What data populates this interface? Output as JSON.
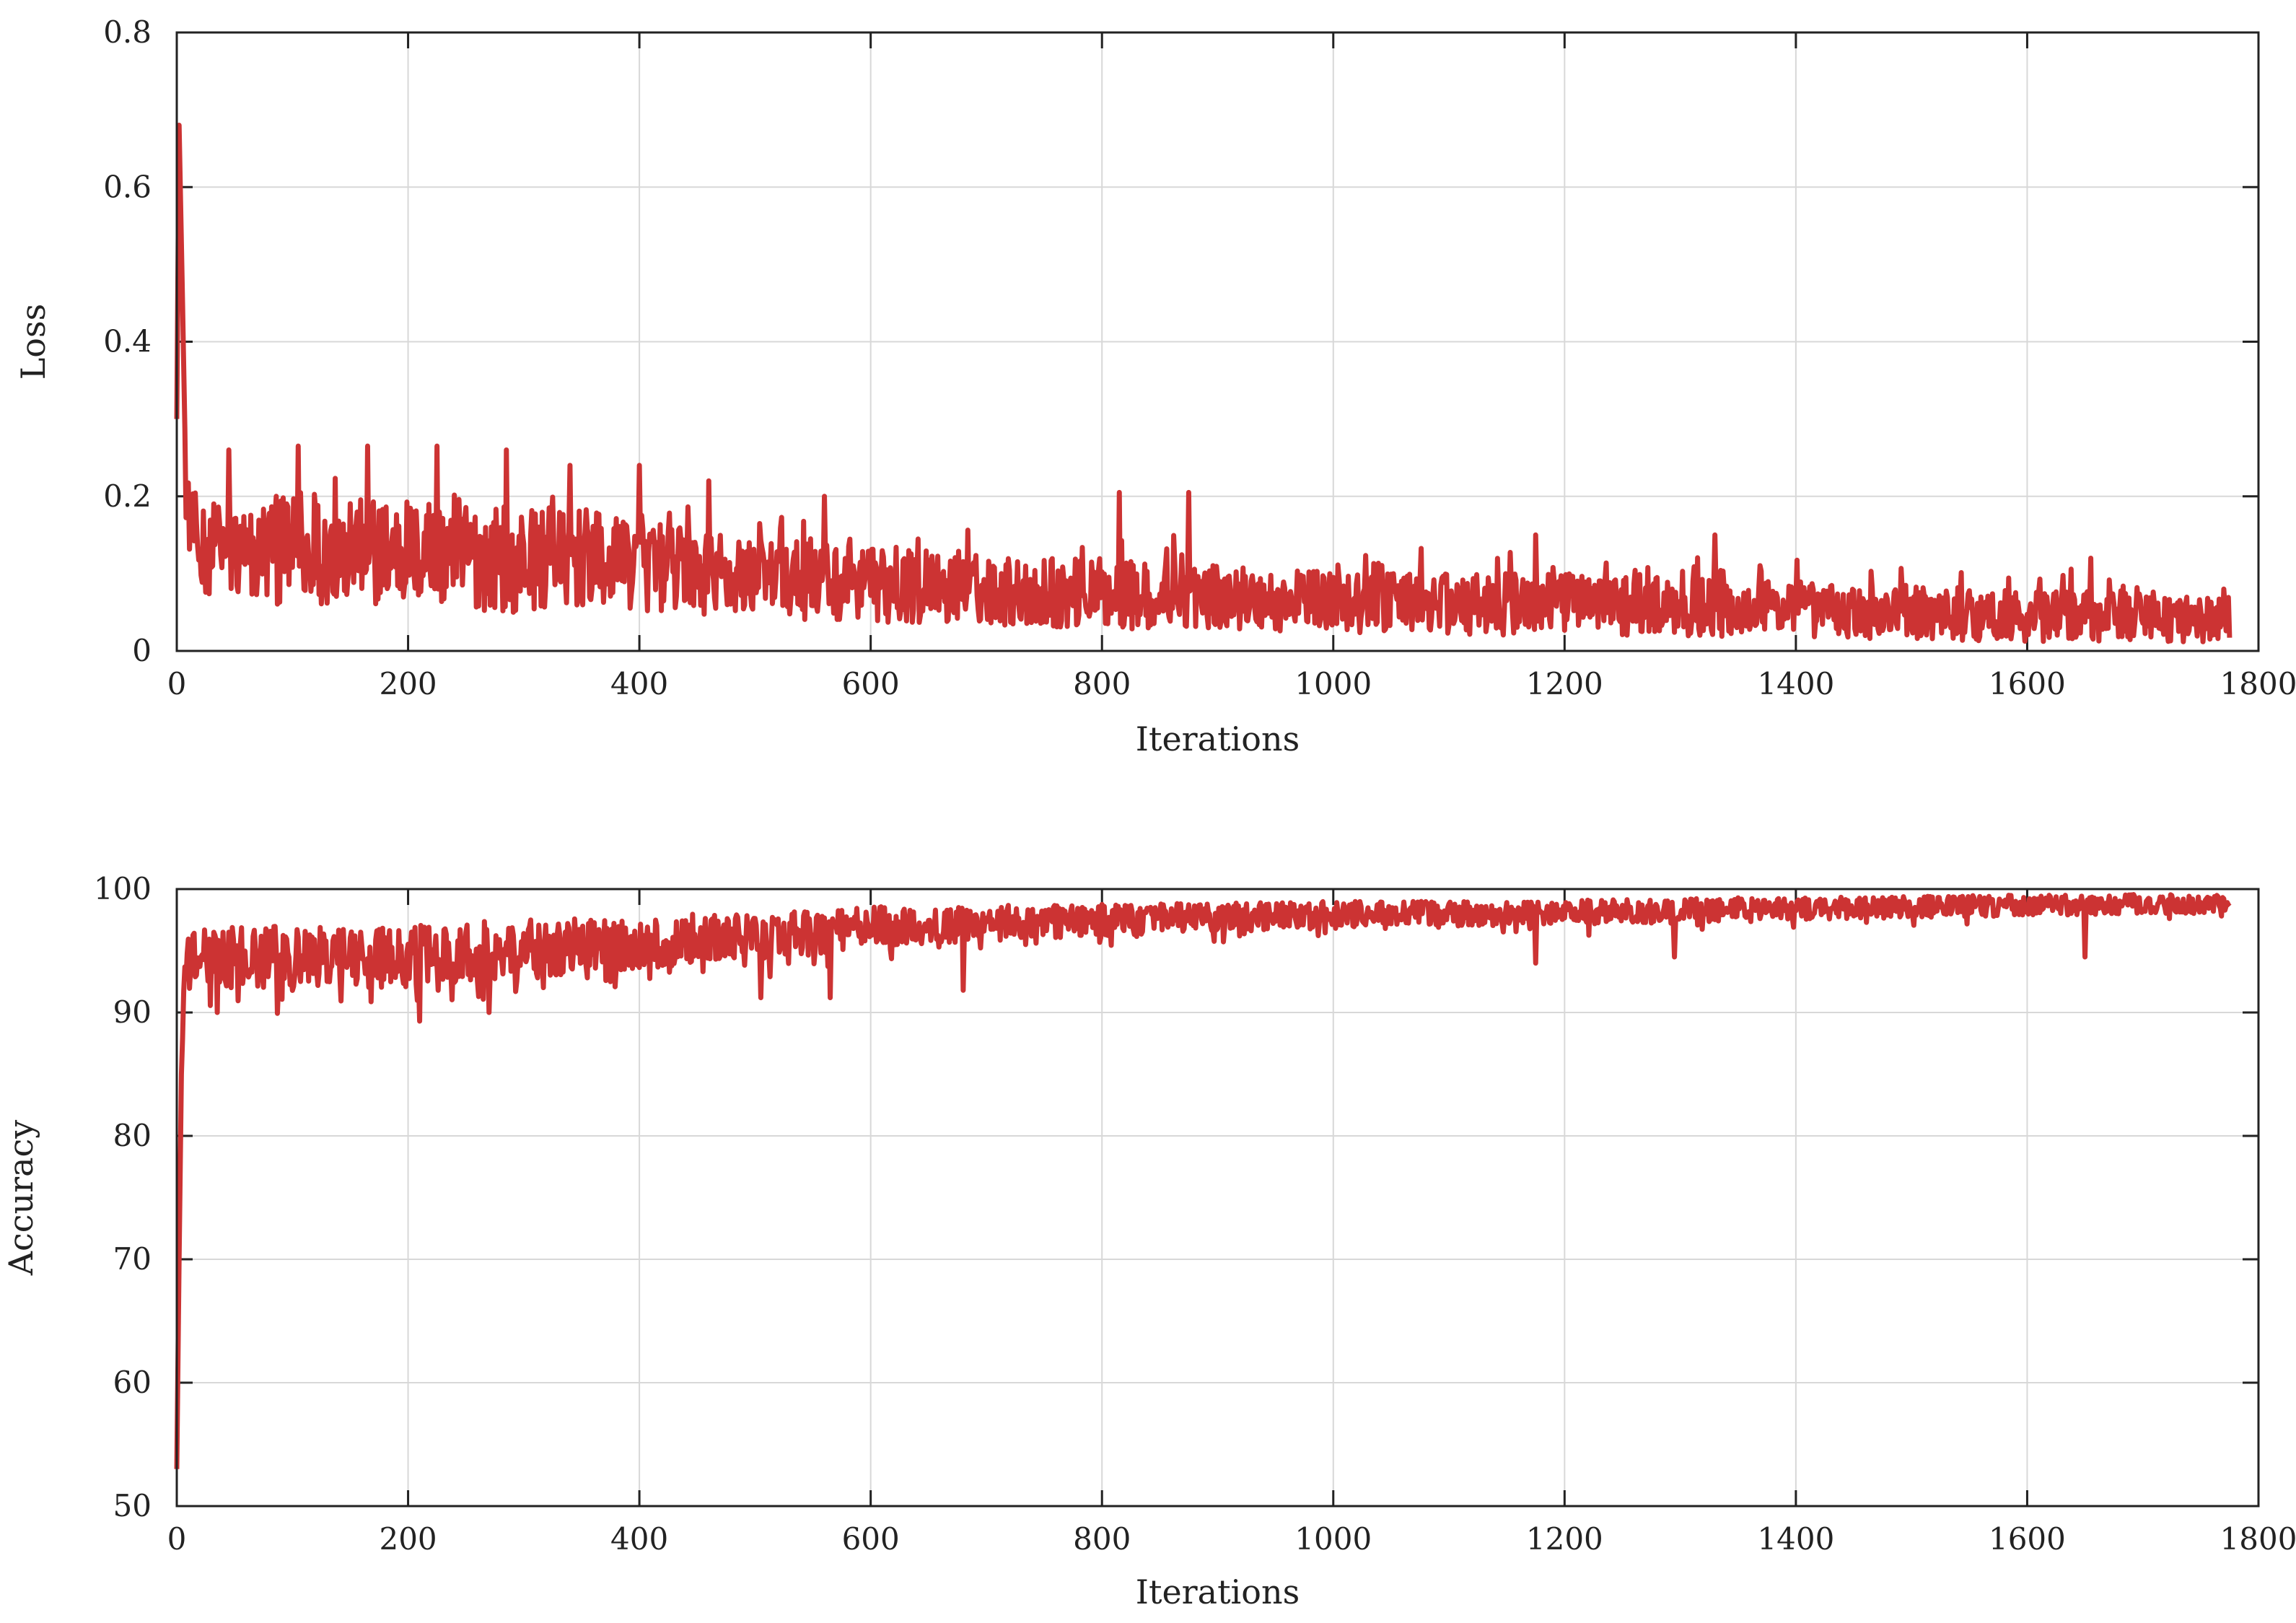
{
  "chart_data": [
    {
      "type": "line",
      "xlabel": "Iterations",
      "ylabel": "Loss",
      "xlim": [
        0,
        1800
      ],
      "ylim": [
        0,
        0.8
      ],
      "xticks": [
        0,
        200,
        400,
        600,
        800,
        1000,
        1200,
        1400,
        1600,
        1800
      ],
      "yticks": [
        0,
        0.2,
        0.4,
        0.6,
        0.8
      ],
      "ytick_labels": [
        "0",
        "0.2",
        "0.4",
        "0.6",
        "0.8"
      ],
      "grid": true,
      "color": "#cc3333",
      "series": [
        {
          "x": [
            0,
            2,
            5,
            8,
            12,
            20,
            35,
            50,
            75,
            100,
            125,
            150,
            175,
            200,
            225,
            250,
            275,
            300,
            325,
            350,
            375,
            400,
            425,
            450,
            475,
            500,
            550,
            600,
            650,
            700,
            750,
            800,
            850,
            900,
            950,
            1000,
            1050,
            1100,
            1150,
            1200,
            1250,
            1300,
            1350,
            1400,
            1450,
            1500,
            1550,
            1600,
            1650,
            1700,
            1750,
            1775
          ],
          "y": [
            0.3,
            0.68,
            0.45,
            0.2,
            0.16,
            0.14,
            0.13,
            0.13,
            0.13,
            0.13,
            0.13,
            0.13,
            0.13,
            0.13,
            0.125,
            0.125,
            0.12,
            0.12,
            0.12,
            0.12,
            0.115,
            0.11,
            0.105,
            0.1,
            0.1,
            0.095,
            0.09,
            0.085,
            0.08,
            0.08,
            0.075,
            0.075,
            0.07,
            0.07,
            0.065,
            0.065,
            0.06,
            0.06,
            0.06,
            0.06,
            0.058,
            0.058,
            0.055,
            0.055,
            0.05,
            0.05,
            0.048,
            0.045,
            0.045,
            0.045,
            0.04,
            0.04
          ],
          "noise": [
            0.0,
            0.0,
            0.0,
            0.03,
            0.05,
            0.06,
            0.065,
            0.07,
            0.07,
            0.07,
            0.07,
            0.07,
            0.07,
            0.07,
            0.07,
            0.07,
            0.07,
            0.07,
            0.065,
            0.065,
            0.06,
            0.06,
            0.06,
            0.055,
            0.055,
            0.05,
            0.05,
            0.048,
            0.045,
            0.045,
            0.045,
            0.045,
            0.045,
            0.04,
            0.04,
            0.04,
            0.04,
            0.04,
            0.04,
            0.04,
            0.038,
            0.038,
            0.038,
            0.036,
            0.035,
            0.035,
            0.035,
            0.033,
            0.033,
            0.033,
            0.03,
            0.03
          ],
          "spikes": [
            [
              45,
              0.26
            ],
            [
              105,
              0.265
            ],
            [
              165,
              0.265
            ],
            [
              225,
              0.265
            ],
            [
              285,
              0.26
            ],
            [
              340,
              0.24
            ],
            [
              400,
              0.24
            ],
            [
              460,
              0.22
            ],
            [
              560,
              0.2
            ],
            [
              815,
              0.205
            ],
            [
              875,
              0.205
            ],
            [
              1175,
              0.15
            ],
            [
              1330,
              0.15
            ],
            [
              1655,
              0.12
            ],
            [
              1770,
              0.08
            ]
          ]
        }
      ]
    },
    {
      "type": "line",
      "xlabel": "Iterations",
      "ylabel": "Accuracy",
      "xlim": [
        0,
        1800
      ],
      "ylim": [
        50,
        100
      ],
      "xticks": [
        0,
        200,
        400,
        600,
        800,
        1000,
        1200,
        1400,
        1600,
        1800
      ],
      "yticks": [
        50,
        60,
        70,
        80,
        90,
        100
      ],
      "ytick_labels": [
        "50",
        "60",
        "70",
        "80",
        "90",
        "100"
      ],
      "grid": true,
      "color": "#cc3333",
      "series": [
        {
          "x": [
            0,
            2,
            4,
            6,
            10,
            20,
            50,
            100,
            150,
            200,
            250,
            300,
            350,
            400,
            450,
            500,
            550,
            600,
            650,
            700,
            750,
            800,
            850,
            900,
            950,
            1000,
            1050,
            1100,
            1150,
            1200,
            1250,
            1300,
            1350,
            1400,
            1450,
            1500,
            1550,
            1600,
            1650,
            1700,
            1750,
            1775
          ],
          "y": [
            53,
            70,
            85,
            92,
            94,
            94.5,
            94.5,
            94.5,
            94.5,
            94.5,
            95,
            95,
            95.5,
            95.5,
            96,
            96,
            96.5,
            97,
            97,
            97.2,
            97.4,
            97.5,
            97.6,
            97.7,
            97.8,
            97.9,
            98,
            98,
            98,
            98.1,
            98.2,
            98.2,
            98.3,
            98.4,
            98.5,
            98.5,
            98.6,
            98.7,
            98.7,
            98.8,
            98.8,
            98.8
          ],
          "noise": [
            0,
            0,
            0,
            1.5,
            2,
            2.5,
            2.5,
            2.5,
            2.5,
            2.5,
            2.5,
            2.5,
            2.2,
            2,
            2,
            2,
            1.8,
            1.6,
            1.5,
            1.5,
            1.4,
            1.3,
            1.2,
            1.2,
            1.1,
            1.1,
            1,
            1,
            1,
            1,
            1,
            1,
            1,
            0.9,
            0.9,
            0.9,
            0.9,
            0.8,
            0.8,
            0.8,
            0.8,
            0.8
          ],
          "dips": [
            [
              35,
              90
            ],
            [
              210,
              89.3
            ],
            [
              270,
              90
            ],
            [
              505,
              91.2
            ],
            [
              565,
              91.2
            ],
            [
              680,
              91.8
            ],
            [
              1175,
              94
            ],
            [
              1295,
              94.5
            ],
            [
              1650,
              94.5
            ]
          ]
        }
      ]
    }
  ]
}
